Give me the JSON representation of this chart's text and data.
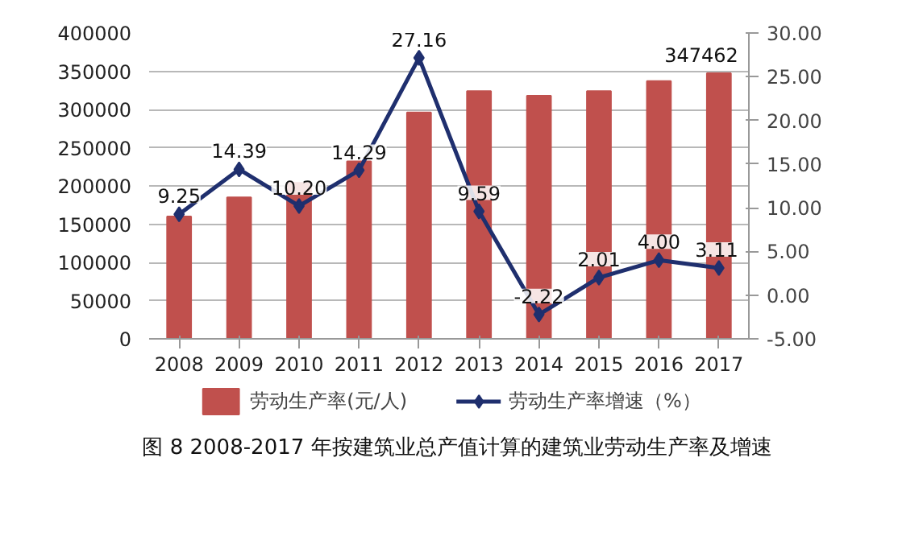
{
  "chart_data": {
    "type": "bar",
    "title": "图 8   2008-2017 年按建筑业总产值计算的建筑业劳动生产率及增速",
    "categories": [
      "2008",
      "2009",
      "2010",
      "2011",
      "2012",
      "2013",
      "2014",
      "2015",
      "2016",
      "2017"
    ],
    "series": [
      {
        "name": "劳动生产率(元/人)",
        "color": "#c0504d",
        "values": [
          160000,
          185000,
          204000,
          232000,
          296000,
          324000,
          318000,
          324000,
          337000,
          347462
        ],
        "value_labels": [
          null,
          null,
          null,
          null,
          null,
          null,
          null,
          null,
          null,
          "347462"
        ]
      },
      {
        "name": "劳动生产率增速（%）",
        "type": "line",
        "axis": "y2",
        "color": "#1f2f6e",
        "values": [
          9.25,
          14.39,
          10.2,
          14.29,
          27.16,
          9.59,
          -2.22,
          2.01,
          4.0,
          3.11
        ],
        "value_labels": [
          "9.25",
          "14.39",
          "10.20",
          "14.29",
          "27.16",
          "9.59",
          "-2.22",
          "2.01",
          "4.00",
          "3.11"
        ]
      }
    ],
    "ylim": [
      0,
      400000
    ],
    "yticks": [
      0,
      50000,
      100000,
      150000,
      200000,
      250000,
      300000,
      350000,
      400000
    ],
    "y2lim": [
      -5,
      30
    ],
    "y2ticks": [
      {
        "value": -5,
        "label": "-5.00"
      },
      {
        "value": 0,
        "label": "0.00"
      },
      {
        "value": 5,
        "label": "5.00"
      },
      {
        "value": 10,
        "label": "10.00"
      },
      {
        "value": 15,
        "label": "15.00"
      },
      {
        "value": 20,
        "label": "20.00"
      },
      {
        "value": 25,
        "label": "25.00"
      },
      {
        "value": 30,
        "label": "30.00"
      }
    ],
    "grid": "y",
    "legend": "bottom",
    "marker": "diamond",
    "line_style": "solid"
  }
}
